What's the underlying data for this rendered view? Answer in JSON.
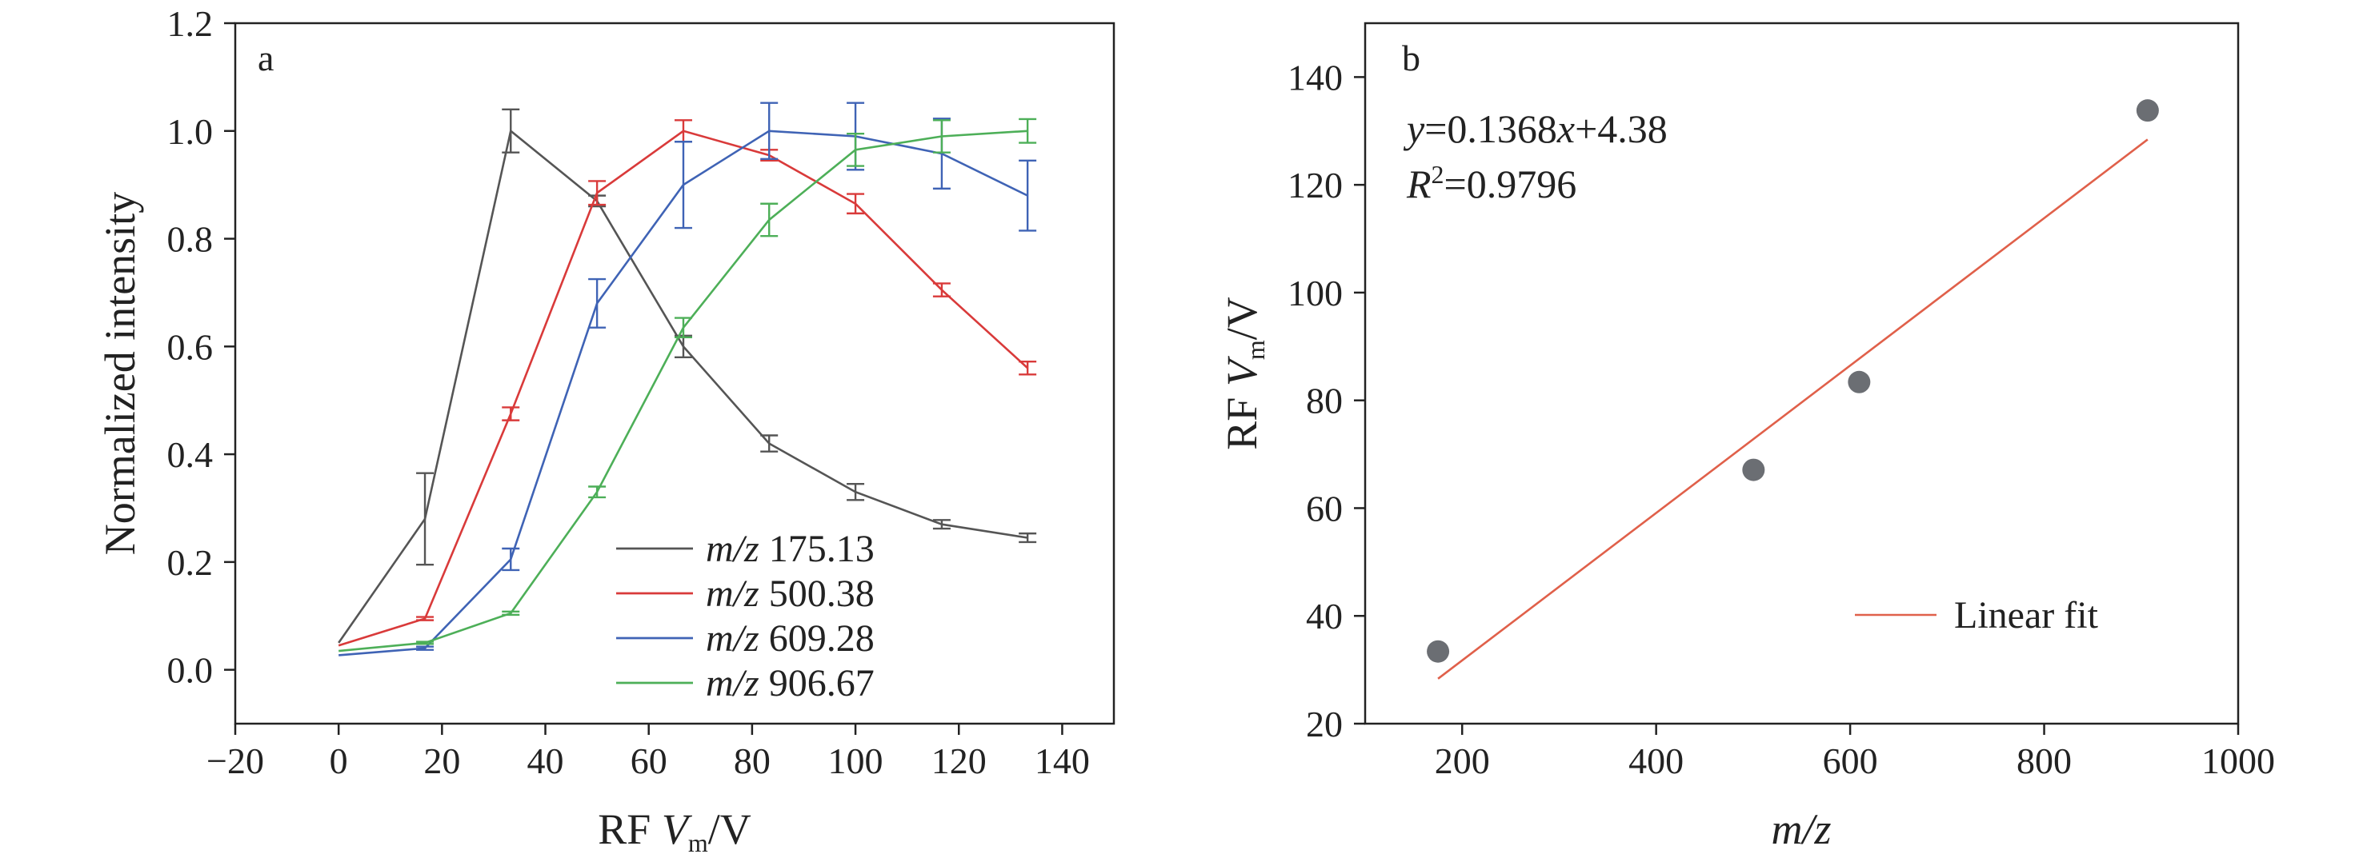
{
  "chart_data": [
    {
      "panel": "a",
      "type": "line",
      "xlabel": {
        "prefix": "RF ",
        "var": "V",
        "sub": "m",
        "suffix": "/V"
      },
      "ylabel": "Normalized intensity",
      "xlim": [
        -20,
        150
      ],
      "ylim": [
        -0.1,
        1.2
      ],
      "xticks": [
        -20,
        0,
        20,
        40,
        60,
        80,
        100,
        120,
        140
      ],
      "xtick_labels": [
        "−20",
        "0",
        "20",
        "40",
        "60",
        "80",
        "100",
        "120",
        "140"
      ],
      "yticks": [
        0.0,
        0.2,
        0.4,
        0.6,
        0.8,
        1.0,
        1.2
      ],
      "ytick_labels": [
        "0.0",
        "0.2",
        "0.4",
        "0.6",
        "0.8",
        "1.0",
        "1.2"
      ],
      "x": [
        0,
        16.7,
        33.3,
        50,
        66.7,
        83.3,
        100,
        116.7,
        133.3
      ],
      "legend_position": "bottom-center",
      "series": [
        {
          "name": "m/z 175.13",
          "mz_label": "m/z",
          "mz_value": "175.13",
          "color": "#555555",
          "values": [
            0.05,
            0.28,
            1.0,
            0.87,
            0.6,
            0.42,
            0.33,
            0.27,
            0.245
          ],
          "errors": [
            0,
            0.085,
            0.04,
            0.01,
            0.02,
            0.015,
            0.015,
            0.008,
            0.008
          ]
        },
        {
          "name": "m/z 500.38",
          "mz_label": "m/z",
          "mz_value": "500.38",
          "color": "#d93a3a",
          "values": [
            0.045,
            0.095,
            0.475,
            0.885,
            1.0,
            0.955,
            0.865,
            0.705,
            0.56
          ],
          "errors": [
            0,
            0.003,
            0.012,
            0.022,
            0.02,
            0.01,
            0.018,
            0.012,
            0.012
          ]
        },
        {
          "name": "m/z 609.28",
          "mz_label": "m/z",
          "mz_value": "609.28",
          "color": "#3f63b5",
          "values": [
            0.027,
            0.04,
            0.205,
            0.68,
            0.9,
            1.0,
            0.99,
            0.958,
            0.88
          ],
          "errors": [
            0,
            0.003,
            0.02,
            0.045,
            0.08,
            0.052,
            0.062,
            0.065,
            0.065
          ]
        },
        {
          "name": "m/z 906.67",
          "mz_label": "m/z",
          "mz_value": "906.67",
          "color": "#4daf58",
          "values": [
            0.035,
            0.05,
            0.105,
            0.33,
            0.635,
            0.835,
            0.965,
            0.99,
            1.0
          ],
          "errors": [
            0,
            0.002,
            0.003,
            0.01,
            0.018,
            0.03,
            0.03,
            0.03,
            0.022
          ]
        }
      ]
    },
    {
      "panel": "b",
      "type": "scatter",
      "xlabel": "m/z",
      "ylabel": {
        "prefix": "RF ",
        "var": "V",
        "sub": "m",
        "suffix": "/V"
      },
      "xlim": [
        100,
        1000
      ],
      "ylim": [
        20,
        150
      ],
      "xticks": [
        200,
        400,
        600,
        800,
        1000
      ],
      "xtick_labels": [
        "200",
        "400",
        "600",
        "800",
        "1000"
      ],
      "yticks": [
        20,
        40,
        60,
        80,
        100,
        120,
        140
      ],
      "ytick_labels": [
        "20",
        "40",
        "60",
        "80",
        "100",
        "120",
        "140"
      ],
      "points": {
        "x": [
          175.13,
          500.38,
          609.28,
          906.67
        ],
        "y": [
          33.4,
          67.1,
          83.4,
          133.8
        ],
        "color": "#6b6e73"
      },
      "fit": {
        "slope": 0.1368,
        "intercept": 4.38,
        "x_range": [
          175.13,
          906.67
        ],
        "color": "#e0604a",
        "legend": "Linear fit"
      },
      "equation": {
        "y_var": "y",
        "eq_text": "=0.1368",
        "x_var": "x",
        "tail": "+4.38"
      },
      "r2": {
        "var": "R",
        "sup": "2",
        "value": "=0.9796"
      },
      "legend_position": "bottom-right"
    }
  ]
}
